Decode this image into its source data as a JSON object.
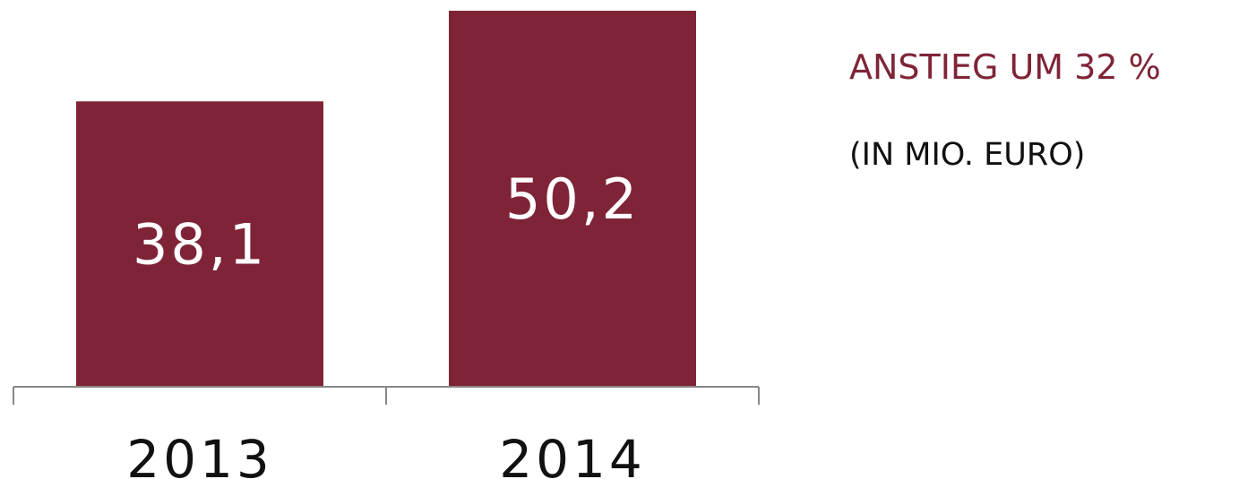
{
  "headline": "ANSTIEG UM 32 %",
  "subline": "(IN MIO. EURO)",
  "colors": {
    "bar": "#7f2437",
    "bar_label": "#ffffff",
    "headline": "#7f2437",
    "axis": "#888888"
  },
  "chart_data": {
    "type": "bar",
    "categories": [
      "2013",
      "2014"
    ],
    "values": [
      38.1,
      50.2
    ],
    "data_labels": [
      "38,1",
      "50,2"
    ],
    "title": "ANSTIEG UM 32 %",
    "subtitle": "(IN MIO. EURO)",
    "xlabel": "",
    "ylabel": "",
    "ylim": [
      0,
      50.2
    ],
    "grid": false,
    "legend": "none"
  }
}
